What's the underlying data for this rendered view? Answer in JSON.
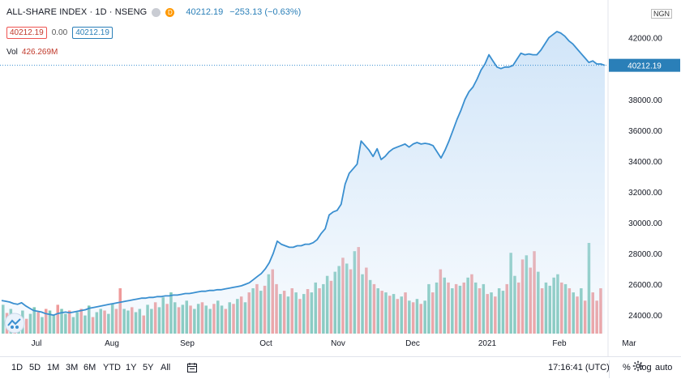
{
  "legend": {
    "symbol": "ALL-SHARE INDEX · 1D · NSENG",
    "badge_d": "D",
    "last": "40212.19",
    "change": "−253.13 (−0.63%)",
    "sell": "40212.19",
    "spread": "0.00",
    "buy": "40212.19",
    "vol_label": "Vol",
    "vol_value": "426.269M"
  },
  "currency": "NGN",
  "price_tag": "40212.19",
  "toolbar": {
    "ranges": [
      "1D",
      "5D",
      "1M",
      "3M",
      "6M",
      "YTD",
      "1Y",
      "5Y",
      "All"
    ],
    "clock": "17:16:41 (UTC)",
    "percent": "%",
    "log": "log",
    "auto": "auto"
  },
  "colors": {
    "line": "#3a8fd0",
    "fill": "#cfe4f8",
    "up": "#7cc6b8",
    "down": "#ef9a9a",
    "tag": "#2a7fb8"
  },
  "chart_data": {
    "type": "area",
    "title": "ALL-SHARE INDEX · 1D · NSENG",
    "yticks": [
      "42000.00",
      "40000.00",
      "38000.00",
      "36000.00",
      "34000.00",
      "32000.00",
      "30000.00",
      "28000.00",
      "26000.00",
      "24000.00"
    ],
    "ylim": [
      22800,
      43400
    ],
    "xticks": [
      "Jul",
      "Aug",
      "Sep",
      "Oct",
      "Nov",
      "Dec",
      "2021",
      "Feb",
      "Mar"
    ],
    "series": [
      {
        "values": [
          24950,
          24900,
          24850,
          24750,
          24700,
          24800,
          24600,
          24450,
          24300,
          24250,
          24200,
          24100,
          24050,
          24000,
          24100,
          24150,
          24200,
          24150,
          24200,
          24250,
          24300,
          24350,
          24450,
          24500,
          24550,
          24600,
          24650,
          24700,
          24750,
          24800,
          24850,
          24900,
          24950,
          25000,
          25050,
          25100,
          25100,
          25150,
          25150,
          25200,
          25200,
          25250,
          25250,
          25300,
          25300,
          25350,
          25400,
          25400,
          25450,
          25500,
          25550,
          25550,
          25600,
          25600,
          25650,
          25650,
          25700,
          25750,
          25800,
          25850,
          25900,
          26000,
          26100,
          26300,
          26500,
          26700,
          27000,
          27400,
          28000,
          28800,
          28600,
          28500,
          28400,
          28400,
          28500,
          28500,
          28600,
          28600,
          28700,
          28900,
          29300,
          29600,
          30500,
          30700,
          30800,
          31200,
          32500,
          33200,
          33500,
          33800,
          35300,
          35000,
          34700,
          34300,
          34800,
          34100,
          34300,
          34600,
          34800,
          34900,
          35000,
          35100,
          34900,
          35100,
          35200,
          35100,
          35150,
          35100,
          35000,
          34600,
          34200,
          34700,
          35300,
          36000,
          36700,
          37300,
          38000,
          38500,
          38800,
          39300,
          39900,
          40300,
          40900,
          40500,
          40100,
          40000,
          40100,
          40100,
          40200,
          40600,
          41000,
          40900,
          40950,
          40900,
          40900,
          41200,
          41600,
          42000,
          42200,
          42400,
          42300,
          42100,
          41800,
          41600,
          41300,
          41000,
          40700,
          40400,
          40500,
          40300,
          40300,
          40212.19
        ]
      }
    ],
    "volume": [
      {
        "v": 0.35,
        "d": 0
      },
      {
        "v": 0.25,
        "d": 1
      },
      {
        "v": 0.3,
        "d": 0
      },
      {
        "v": 0.2,
        "d": 1
      },
      {
        "v": 0.22,
        "d": 0
      },
      {
        "v": 0.28,
        "d": 0
      },
      {
        "v": 0.18,
        "d": 1
      },
      {
        "v": 0.24,
        "d": 0
      },
      {
        "v": 0.32,
        "d": 0
      },
      {
        "v": 0.26,
        "d": 1
      },
      {
        "v": 0.2,
        "d": 0
      },
      {
        "v": 0.3,
        "d": 1
      },
      {
        "v": 0.28,
        "d": 0
      },
      {
        "v": 0.22,
        "d": 0
      },
      {
        "v": 0.35,
        "d": 1
      },
      {
        "v": 0.3,
        "d": 0
      },
      {
        "v": 0.24,
        "d": 0
      },
      {
        "v": 0.28,
        "d": 1
      },
      {
        "v": 0.2,
        "d": 0
      },
      {
        "v": 0.26,
        "d": 0
      },
      {
        "v": 0.3,
        "d": 1
      },
      {
        "v": 0.22,
        "d": 0
      },
      {
        "v": 0.34,
        "d": 0
      },
      {
        "v": 0.2,
        "d": 1
      },
      {
        "v": 0.26,
        "d": 0
      },
      {
        "v": 0.3,
        "d": 0
      },
      {
        "v": 0.28,
        "d": 1
      },
      {
        "v": 0.24,
        "d": 0
      },
      {
        "v": 0.36,
        "d": 0
      },
      {
        "v": 0.3,
        "d": 1
      },
      {
        "v": 0.55,
        "d": 1
      },
      {
        "v": 0.3,
        "d": 0
      },
      {
        "v": 0.28,
        "d": 0
      },
      {
        "v": 0.32,
        "d": 1
      },
      {
        "v": 0.26,
        "d": 0
      },
      {
        "v": 0.3,
        "d": 0
      },
      {
        "v": 0.22,
        "d": 1
      },
      {
        "v": 0.35,
        "d": 0
      },
      {
        "v": 0.3,
        "d": 0
      },
      {
        "v": 0.38,
        "d": 1
      },
      {
        "v": 0.32,
        "d": 0
      },
      {
        "v": 0.44,
        "d": 0
      },
      {
        "v": 0.36,
        "d": 1
      },
      {
        "v": 0.5,
        "d": 0
      },
      {
        "v": 0.38,
        "d": 0
      },
      {
        "v": 0.32,
        "d": 1
      },
      {
        "v": 0.35,
        "d": 0
      },
      {
        "v": 0.4,
        "d": 0
      },
      {
        "v": 0.34,
        "d": 1
      },
      {
        "v": 0.3,
        "d": 0
      },
      {
        "v": 0.36,
        "d": 0
      },
      {
        "v": 0.38,
        "d": 1
      },
      {
        "v": 0.34,
        "d": 0
      },
      {
        "v": 0.3,
        "d": 0
      },
      {
        "v": 0.36,
        "d": 1
      },
      {
        "v": 0.4,
        "d": 0
      },
      {
        "v": 0.34,
        "d": 0
      },
      {
        "v": 0.3,
        "d": 1
      },
      {
        "v": 0.38,
        "d": 0
      },
      {
        "v": 0.36,
        "d": 1
      },
      {
        "v": 0.42,
        "d": 0
      },
      {
        "v": 0.45,
        "d": 1
      },
      {
        "v": 0.38,
        "d": 0
      },
      {
        "v": 0.5,
        "d": 1
      },
      {
        "v": 0.55,
        "d": 0
      },
      {
        "v": 0.6,
        "d": 1
      },
      {
        "v": 0.52,
        "d": 0
      },
      {
        "v": 0.58,
        "d": 1
      },
      {
        "v": 0.72,
        "d": 0
      },
      {
        "v": 0.78,
        "d": 1
      },
      {
        "v": 0.6,
        "d": 1
      },
      {
        "v": 0.48,
        "d": 0
      },
      {
        "v": 0.52,
        "d": 1
      },
      {
        "v": 0.45,
        "d": 0
      },
      {
        "v": 0.55,
        "d": 1
      },
      {
        "v": 0.5,
        "d": 0
      },
      {
        "v": 0.42,
        "d": 1
      },
      {
        "v": 0.48,
        "d": 0
      },
      {
        "v": 0.54,
        "d": 1
      },
      {
        "v": 0.5,
        "d": 0
      },
      {
        "v": 0.62,
        "d": 0
      },
      {
        "v": 0.55,
        "d": 1
      },
      {
        "v": 0.6,
        "d": 0
      },
      {
        "v": 0.7,
        "d": 0
      },
      {
        "v": 0.64,
        "d": 1
      },
      {
        "v": 0.75,
        "d": 0
      },
      {
        "v": 0.82,
        "d": 0
      },
      {
        "v": 0.92,
        "d": 1
      },
      {
        "v": 0.85,
        "d": 0
      },
      {
        "v": 0.78,
        "d": 1
      },
      {
        "v": 1.0,
        "d": 0
      },
      {
        "v": 1.05,
        "d": 1
      },
      {
        "v": 0.72,
        "d": 0
      },
      {
        "v": 0.8,
        "d": 1
      },
      {
        "v": 0.65,
        "d": 0
      },
      {
        "v": 0.6,
        "d": 1
      },
      {
        "v": 0.55,
        "d": 0
      },
      {
        "v": 0.52,
        "d": 1
      },
      {
        "v": 0.5,
        "d": 0
      },
      {
        "v": 0.46,
        "d": 1
      },
      {
        "v": 0.48,
        "d": 0
      },
      {
        "v": 0.42,
        "d": 1
      },
      {
        "v": 0.45,
        "d": 0
      },
      {
        "v": 0.5,
        "d": 1
      },
      {
        "v": 0.4,
        "d": 0
      },
      {
        "v": 0.38,
        "d": 1
      },
      {
        "v": 0.42,
        "d": 0
      },
      {
        "v": 0.36,
        "d": 1
      },
      {
        "v": 0.4,
        "d": 0
      },
      {
        "v": 0.6,
        "d": 0
      },
      {
        "v": 0.5,
        "d": 1
      },
      {
        "v": 0.62,
        "d": 0
      },
      {
        "v": 0.78,
        "d": 1
      },
      {
        "v": 0.68,
        "d": 0
      },
      {
        "v": 0.62,
        "d": 1
      },
      {
        "v": 0.55,
        "d": 0
      },
      {
        "v": 0.6,
        "d": 1
      },
      {
        "v": 0.58,
        "d": 0
      },
      {
        "v": 0.62,
        "d": 1
      },
      {
        "v": 0.68,
        "d": 0
      },
      {
        "v": 0.72,
        "d": 1
      },
      {
        "v": 0.62,
        "d": 0
      },
      {
        "v": 0.55,
        "d": 1
      },
      {
        "v": 0.6,
        "d": 0
      },
      {
        "v": 0.48,
        "d": 1
      },
      {
        "v": 0.5,
        "d": 0
      },
      {
        "v": 0.45,
        "d": 1
      },
      {
        "v": 0.55,
        "d": 0
      },
      {
        "v": 0.52,
        "d": 0
      },
      {
        "v": 0.6,
        "d": 1
      },
      {
        "v": 0.98,
        "d": 0
      },
      {
        "v": 0.7,
        "d": 0
      },
      {
        "v": 0.62,
        "d": 1
      },
      {
        "v": 0.9,
        "d": 1
      },
      {
        "v": 0.95,
        "d": 0
      },
      {
        "v": 0.8,
        "d": 1
      },
      {
        "v": 1.0,
        "d": 1
      },
      {
        "v": 0.75,
        "d": 0
      },
      {
        "v": 0.55,
        "d": 1
      },
      {
        "v": 0.62,
        "d": 0
      },
      {
        "v": 0.58,
        "d": 0
      },
      {
        "v": 0.68,
        "d": 0
      },
      {
        "v": 0.72,
        "d": 0
      },
      {
        "v": 0.62,
        "d": 1
      },
      {
        "v": 0.6,
        "d": 0
      },
      {
        "v": 0.55,
        "d": 1
      },
      {
        "v": 0.5,
        "d": 0
      },
      {
        "v": 0.45,
        "d": 1
      },
      {
        "v": 0.55,
        "d": 0
      },
      {
        "v": 0.4,
        "d": 1
      },
      {
        "v": 1.1,
        "d": 0
      },
      {
        "v": 0.5,
        "d": 1
      },
      {
        "v": 0.4,
        "d": 1
      },
      {
        "v": 0.55,
        "d": 1
      }
    ]
  }
}
